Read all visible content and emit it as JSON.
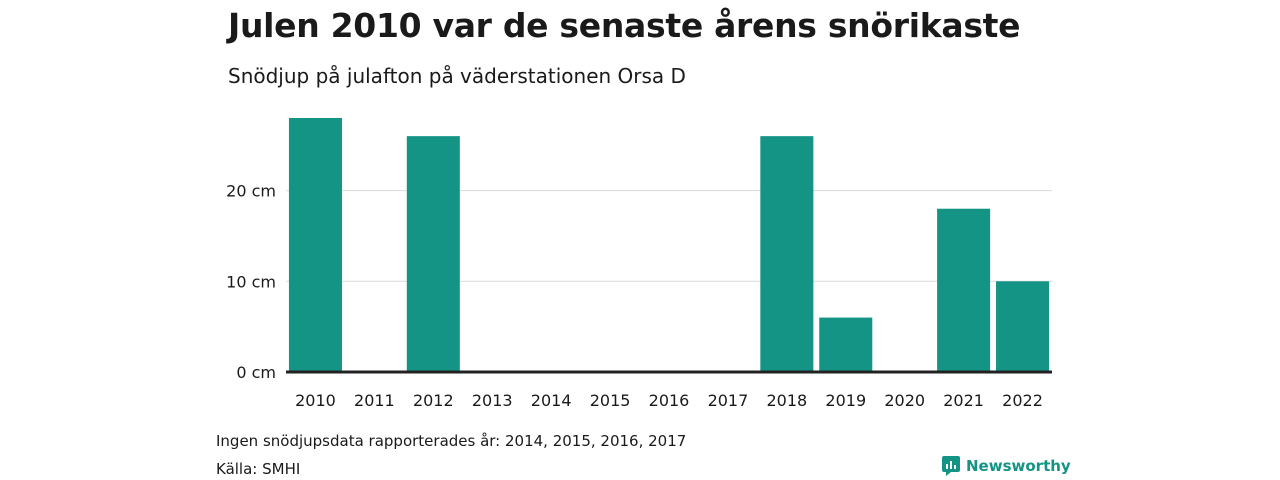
{
  "title": "Julen 2010 var de senaste årens snörikaste",
  "subtitle": "Snödjup på julafton på väderstationen Orsa D",
  "footnote": "Ingen snödjupsdata rapporterades år: 2014, 2015, 2016, 2017",
  "source": "Källa: SMHI",
  "brand": {
    "name": "Newsworthy",
    "icon": "newsworthy-logo-icon"
  },
  "colors": {
    "bar": "#149484",
    "grid": "#d9d9d9",
    "axis": "#222222",
    "text": "#1a1a1a"
  },
  "chart_data": {
    "type": "bar",
    "categories": [
      "2010",
      "2011",
      "2012",
      "2013",
      "2014",
      "2015",
      "2016",
      "2017",
      "2018",
      "2019",
      "2020",
      "2021",
      "2022"
    ],
    "values": [
      28,
      0,
      26,
      0,
      null,
      null,
      null,
      null,
      26,
      6,
      0,
      18,
      10
    ],
    "ylim": [
      0,
      28
    ],
    "yticks": [
      0,
      10,
      20
    ],
    "ytick_labels": [
      "0 cm",
      "10 cm",
      "20 cm"
    ],
    "grid": true,
    "legend": "none"
  }
}
